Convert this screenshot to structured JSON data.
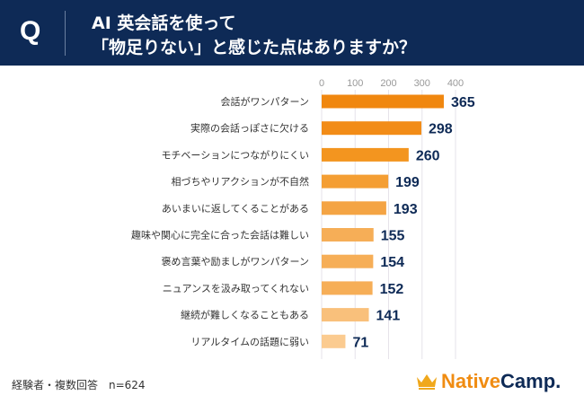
{
  "header": {
    "q_label": "Q",
    "title_line1": "AI 英会話を使って",
    "title_line2": "「物足りない」と感じた点はありますか？"
  },
  "footer": {
    "note": "経験者・複数回答　n=624"
  },
  "logo": {
    "part1": "Native",
    "part2": "Camp.",
    "crown_color": "#f0a81c"
  },
  "chart_data": {
    "type": "bar",
    "orientation": "horizontal",
    "categories": [
      "会話がワンパターン",
      "実際の会話っぽさに欠ける",
      "モチベーションにつながりにくい",
      "相づちやリアクションが不自然",
      "あいまいに返してくることがある",
      "趣味や関心に完全に合った会話は難しい",
      "褒め言葉や励ましがワンパターン",
      "ニュアンスを汲み取ってくれない",
      "継続が難しくなることもある",
      "リアルタイムの話題に弱い"
    ],
    "values": [
      365,
      298,
      260,
      199,
      193,
      155,
      154,
      152,
      141,
      71
    ],
    "xlim": [
      0,
      400
    ],
    "xticks": [
      "0",
      "100",
      "200",
      "300",
      "400"
    ],
    "grid": true,
    "bar_colors": [
      "#f0870f",
      "#f28c17",
      "#f3951f",
      "#f49e33",
      "#f4a444",
      "#f6ae57",
      "#f6ae57",
      "#f6ae57",
      "#f9c07b",
      "#fbcb90"
    ],
    "label_color": "#0e2a56"
  }
}
